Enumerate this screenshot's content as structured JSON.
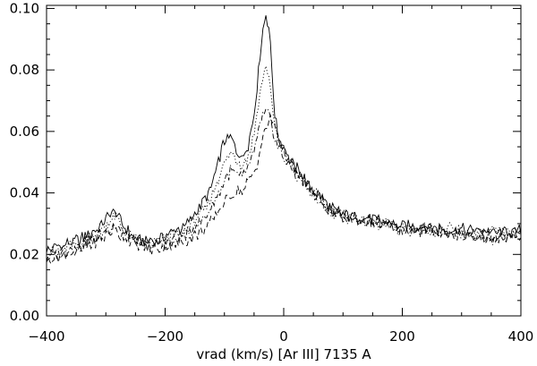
{
  "chart_data": {
    "type": "line",
    "title": "",
    "xlabel": "vrad (km/s) [Ar III] 7135 A",
    "ylabel": "",
    "xlim": [
      -400,
      400
    ],
    "ylim": [
      0.0,
      0.101
    ],
    "grid": false,
    "x_ticks": [
      -400,
      -200,
      0,
      200,
      400
    ],
    "x_tick_labels": [
      "−400",
      "−200",
      "0",
      "200",
      "400"
    ],
    "y_ticks": [
      0.0,
      0.02,
      0.04,
      0.06,
      0.08,
      0.1
    ],
    "y_tick_labels": [
      "0.00",
      "0.02",
      "0.04",
      "0.06",
      "0.08",
      "0.10"
    ],
    "line_styles": [
      "solid",
      "dotted",
      "dashdot",
      "dashed"
    ],
    "series": [
      {
        "x": [
          -400,
          -370,
          -340,
          -310,
          -295,
          -285,
          -270,
          -250,
          -230,
          -210,
          -190,
          -170,
          -160,
          -150,
          -140,
          -130,
          -120,
          -110,
          -100,
          -90,
          -80,
          -70,
          -60,
          -50,
          -45,
          -40,
          -35,
          -30,
          -25,
          -20,
          -15,
          -10,
          0,
          10,
          20,
          30,
          40,
          50,
          60,
          70,
          80,
          100,
          130,
          160,
          200,
          240,
          280,
          320,
          360,
          400
        ],
        "y": [
          0.021,
          0.023,
          0.025,
          0.029,
          0.033,
          0.034,
          0.029,
          0.025,
          0.024,
          0.025,
          0.027,
          0.029,
          0.031,
          0.033,
          0.036,
          0.039,
          0.043,
          0.05,
          0.057,
          0.058,
          0.054,
          0.051,
          0.056,
          0.066,
          0.075,
          0.085,
          0.094,
          0.098,
          0.094,
          0.08,
          0.066,
          0.059,
          0.055,
          0.051,
          0.048,
          0.046,
          0.043,
          0.041,
          0.039,
          0.037,
          0.035,
          0.033,
          0.032,
          0.031,
          0.029,
          0.029,
          0.028,
          0.028,
          0.027,
          0.028
        ]
      },
      {
        "x": [
          -400,
          -370,
          -340,
          -310,
          -295,
          -285,
          -270,
          -250,
          -230,
          -210,
          -190,
          -170,
          -160,
          -150,
          -140,
          -130,
          -120,
          -110,
          -100,
          -90,
          -80,
          -70,
          -60,
          -50,
          -45,
          -40,
          -35,
          -30,
          -25,
          -20,
          -15,
          -10,
          0,
          10,
          20,
          30,
          40,
          50,
          60,
          70,
          80,
          100,
          130,
          160,
          200,
          240,
          280,
          320,
          360,
          400
        ],
        "y": [
          0.02,
          0.022,
          0.024,
          0.027,
          0.031,
          0.032,
          0.028,
          0.025,
          0.024,
          0.024,
          0.026,
          0.027,
          0.029,
          0.031,
          0.033,
          0.036,
          0.04,
          0.045,
          0.05,
          0.053,
          0.051,
          0.049,
          0.052,
          0.059,
          0.066,
          0.072,
          0.078,
          0.081,
          0.078,
          0.07,
          0.062,
          0.057,
          0.053,
          0.05,
          0.047,
          0.045,
          0.042,
          0.04,
          0.038,
          0.036,
          0.034,
          0.033,
          0.031,
          0.03,
          0.029,
          0.028,
          0.028,
          0.027,
          0.027,
          0.027
        ]
      },
      {
        "x": [
          -400,
          -370,
          -340,
          -310,
          -295,
          -285,
          -270,
          -250,
          -230,
          -210,
          -190,
          -170,
          -160,
          -150,
          -140,
          -130,
          -120,
          -110,
          -100,
          -90,
          -80,
          -70,
          -60,
          -50,
          -45,
          -40,
          -35,
          -30,
          -25,
          -20,
          -15,
          -10,
          0,
          10,
          20,
          30,
          40,
          50,
          60,
          70,
          80,
          100,
          130,
          160,
          200,
          240,
          280,
          320,
          360,
          400
        ],
        "y": [
          0.019,
          0.021,
          0.023,
          0.026,
          0.029,
          0.03,
          0.027,
          0.024,
          0.023,
          0.023,
          0.024,
          0.026,
          0.027,
          0.029,
          0.031,
          0.033,
          0.036,
          0.04,
          0.044,
          0.047,
          0.046,
          0.045,
          0.048,
          0.053,
          0.058,
          0.062,
          0.065,
          0.066,
          0.065,
          0.062,
          0.058,
          0.055,
          0.052,
          0.049,
          0.046,
          0.044,
          0.041,
          0.039,
          0.037,
          0.035,
          0.034,
          0.032,
          0.031,
          0.03,
          0.028,
          0.028,
          0.027,
          0.026,
          0.025,
          0.026
        ]
      },
      {
        "x": [
          -400,
          -370,
          -340,
          -310,
          -295,
          -285,
          -270,
          -250,
          -230,
          -210,
          -190,
          -170,
          -160,
          -150,
          -140,
          -130,
          -120,
          -110,
          -100,
          -90,
          -80,
          -70,
          -60,
          -50,
          -45,
          -40,
          -35,
          -30,
          -25,
          -20,
          -15,
          -10,
          0,
          10,
          20,
          30,
          40,
          50,
          60,
          70,
          80,
          100,
          130,
          160,
          200,
          240,
          280,
          320,
          360,
          400
        ],
        "y": [
          0.018,
          0.02,
          0.022,
          0.025,
          0.027,
          0.028,
          0.026,
          0.023,
          0.022,
          0.022,
          0.023,
          0.024,
          0.025,
          0.026,
          0.027,
          0.029,
          0.031,
          0.034,
          0.037,
          0.039,
          0.04,
          0.041,
          0.043,
          0.047,
          0.05,
          0.054,
          0.058,
          0.061,
          0.063,
          0.064,
          0.062,
          0.059,
          0.054,
          0.05,
          0.047,
          0.045,
          0.043,
          0.04,
          0.038,
          0.036,
          0.034,
          0.032,
          0.031,
          0.03,
          0.028,
          0.028,
          0.027,
          0.026,
          0.025,
          0.025
        ]
      }
    ]
  }
}
